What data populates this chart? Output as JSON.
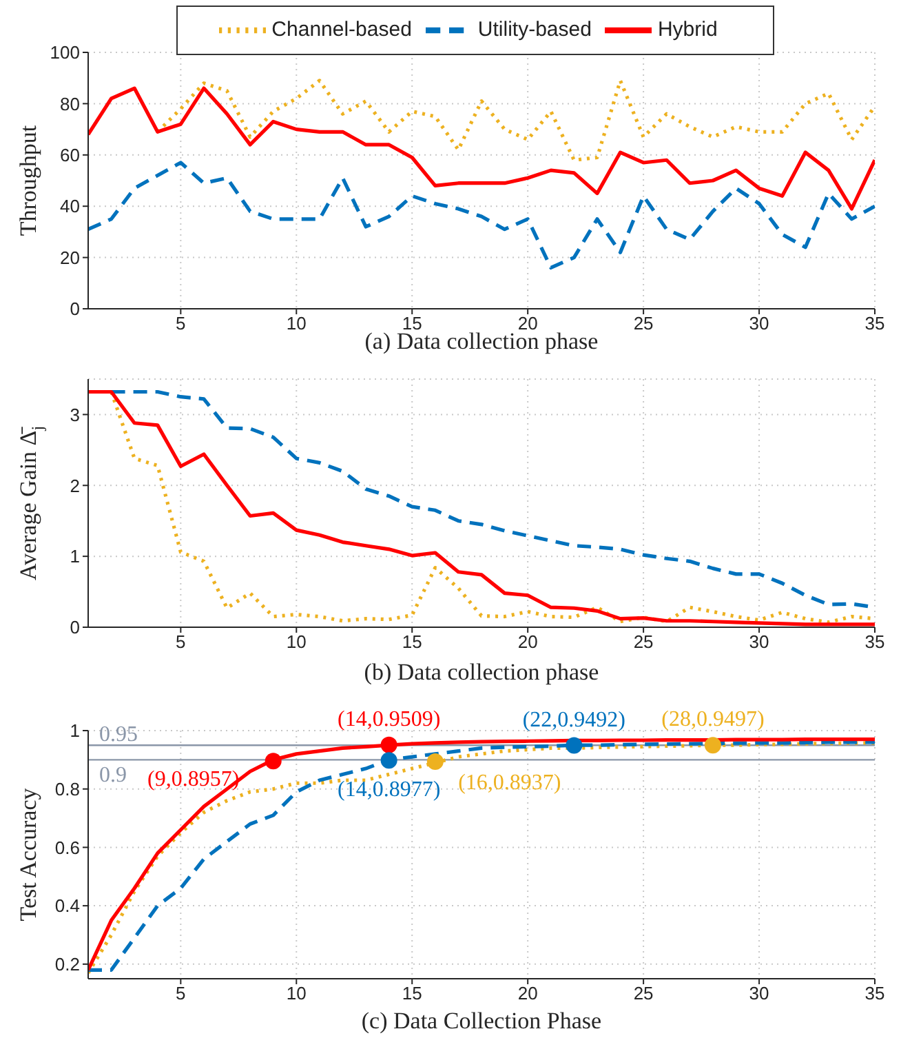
{
  "chart_data": [
    {
      "type": "line",
      "ylabel": "Throughput",
      "xlabel": "(a) Data collection phase",
      "legend": "top",
      "grid": true,
      "marker": "none",
      "x": [
        1,
        2,
        3,
        4,
        5,
        6,
        7,
        8,
        9,
        10,
        11,
        12,
        13,
        14,
        15,
        16,
        17,
        18,
        19,
        20,
        21,
        22,
        23,
        24,
        25,
        26,
        27,
        28,
        29,
        30,
        31,
        32,
        33,
        34,
        35
      ],
      "xlim": [
        1,
        35
      ],
      "xticks": [
        5,
        10,
        15,
        20,
        25,
        30,
        35
      ],
      "ylim": [
        0,
        100
      ],
      "yticks": [
        0,
        20,
        40,
        60,
        80,
        100
      ],
      "series": [
        {
          "name": "Channel-based",
          "color": "#edb120",
          "line_style": "dotted",
          "values": [
            null,
            null,
            null,
            69,
            78,
            88,
            85,
            67,
            77,
            82,
            89,
            76,
            81,
            69,
            77,
            75,
            62,
            81,
            70,
            66,
            77,
            58,
            59,
            89,
            67,
            76,
            71,
            67,
            71,
            69,
            69,
            80,
            84,
            66,
            79
          ]
        },
        {
          "name": "Utility-based",
          "color": "#0072bd",
          "line_style": "dashed",
          "values": [
            31,
            35,
            47,
            52,
            57,
            49,
            51,
            38,
            35,
            35,
            35,
            51,
            32,
            36,
            44,
            41,
            39,
            36,
            31,
            35,
            16,
            20,
            35,
            22,
            44,
            31,
            27,
            38,
            47,
            41,
            29,
            24,
            45,
            35,
            40
          ]
        },
        {
          "name": "Hybrid",
          "color": "#ff0000",
          "line_style": "solid",
          "values": [
            68,
            82,
            86,
            69,
            72,
            86,
            76,
            64,
            73,
            70,
            69,
            69,
            64,
            64,
            59,
            48,
            49,
            49,
            49,
            51,
            54,
            53,
            45,
            61,
            57,
            58,
            49,
            50,
            54,
            47,
            44,
            61,
            54,
            39,
            58
          ]
        }
      ]
    },
    {
      "type": "line",
      "ylabel": "Average Gain Δ̄$_{j}$",
      "xlabel": "(b) Data collection phase",
      "grid": true,
      "marker": "none",
      "x": [
        1,
        2,
        3,
        4,
        5,
        6,
        7,
        8,
        9,
        10,
        11,
        12,
        13,
        14,
        15,
        16,
        17,
        18,
        19,
        20,
        21,
        22,
        23,
        24,
        25,
        26,
        27,
        28,
        29,
        30,
        31,
        32,
        33,
        34,
        35
      ],
      "xlim": [
        1,
        35
      ],
      "xticks": [
        5,
        10,
        15,
        20,
        25,
        30,
        35
      ],
      "ylim": [
        0,
        3.5
      ],
      "yticks": [
        0,
        1,
        2,
        3
      ],
      "series": [
        {
          "color": "#edb120",
          "line_style": "dotted",
          "values": [
            null,
            3.32,
            2.38,
            2.28,
            1.06,
            0.93,
            0.27,
            0.48,
            0.15,
            0.18,
            0.15,
            0.09,
            0.12,
            0.11,
            0.17,
            0.84,
            0.55,
            0.16,
            0.15,
            0.22,
            0.15,
            0.14,
            0.28,
            0.08,
            0.14,
            0.08,
            0.28,
            0.22,
            0.15,
            0.1,
            0.21,
            0.12,
            0.07,
            0.15,
            0.12
          ]
        },
        {
          "color": "#0072bd",
          "line_style": "dashed",
          "values": [
            null,
            3.32,
            3.32,
            3.32,
            3.25,
            3.22,
            2.81,
            2.8,
            2.68,
            2.38,
            2.32,
            2.2,
            1.95,
            1.85,
            1.7,
            1.65,
            1.5,
            1.45,
            1.36,
            1.29,
            1.22,
            1.15,
            1.13,
            1.1,
            1.02,
            0.97,
            0.93,
            0.83,
            0.75,
            0.75,
            0.62,
            0.45,
            0.32,
            0.33,
            0.28
          ]
        },
        {
          "color": "#ff0000",
          "line_style": "solid",
          "values": [
            3.32,
            3.32,
            2.88,
            2.85,
            2.27,
            2.44,
            2.0,
            1.57,
            1.61,
            1.37,
            1.3,
            1.2,
            1.15,
            1.1,
            1.01,
            1.05,
            0.78,
            0.74,
            0.48,
            0.45,
            0.28,
            0.27,
            0.23,
            0.12,
            0.13,
            0.09,
            0.09,
            0.08,
            0.07,
            0.06,
            0.05,
            0.04,
            0.04,
            0.04,
            0.04
          ]
        }
      ]
    },
    {
      "type": "line",
      "ylabel": "Test Accuracy",
      "xlabel": "(c) Data Collection Phase",
      "grid": true,
      "marker": "none",
      "x": [
        1,
        2,
        3,
        4,
        5,
        6,
        7,
        8,
        9,
        10,
        11,
        12,
        13,
        14,
        15,
        16,
        17,
        18,
        19,
        20,
        21,
        22,
        23,
        24,
        25,
        26,
        27,
        28,
        29,
        30,
        31,
        32,
        33,
        34,
        35
      ],
      "xlim": [
        1,
        35
      ],
      "xticks": [
        5,
        10,
        15,
        20,
        25,
        30,
        35
      ],
      "ylim": [
        0.15,
        1
      ],
      "yticks": [
        0.2,
        0.4,
        0.6,
        0.8,
        1
      ],
      "ref_lines": [
        {
          "axis": "y",
          "value": 0.95,
          "label": "0.95",
          "color": "#8a96a8"
        },
        {
          "axis": "y",
          "value": 0.9,
          "label": "0.9",
          "color": "#8a96a8"
        }
      ],
      "series": [
        {
          "color": "#edb120",
          "line_style": "dotted",
          "values": [
            0.17,
            0.3,
            0.45,
            0.57,
            0.65,
            0.72,
            0.76,
            0.79,
            0.8,
            0.82,
            0.82,
            0.83,
            0.83,
            0.85,
            0.87,
            0.89,
            0.91,
            0.92,
            0.93,
            0.935,
            0.94,
            0.94,
            0.942,
            0.944,
            0.945,
            0.947,
            0.948,
            0.95,
            0.95,
            0.952,
            0.953,
            0.955,
            0.956,
            0.957,
            0.958
          ]
        },
        {
          "color": "#0072bd",
          "line_style": "dashed",
          "values": [
            0.18,
            0.18,
            0.29,
            0.4,
            0.46,
            0.56,
            0.62,
            0.68,
            0.71,
            0.79,
            0.83,
            0.85,
            0.87,
            0.9,
            0.91,
            0.92,
            0.93,
            0.94,
            0.943,
            0.945,
            0.947,
            0.95,
            0.95,
            0.952,
            0.953,
            0.954,
            0.955,
            0.956,
            0.957,
            0.958,
            0.958,
            0.959,
            0.96,
            0.96,
            0.96
          ]
        },
        {
          "color": "#ff0000",
          "line_style": "solid",
          "values": [
            0.18,
            0.35,
            0.46,
            0.58,
            0.66,
            0.74,
            0.8,
            0.86,
            0.9,
            0.92,
            0.93,
            0.94,
            0.945,
            0.95,
            0.955,
            0.958,
            0.96,
            0.962,
            0.963,
            0.964,
            0.965,
            0.966,
            0.966,
            0.967,
            0.967,
            0.968,
            0.968,
            0.968,
            0.969,
            0.969,
            0.969,
            0.97,
            0.97,
            0.97,
            0.97
          ]
        },
        {
          "type": "scatter",
          "marker": "circle",
          "color": "#ff0000",
          "x": [
            9,
            14
          ],
          "values": [
            0.8957,
            0.9509
          ],
          "value_labels": [
            "(9,0.8957)",
            "(14,0.9509)"
          ]
        },
        {
          "type": "scatter",
          "marker": "circle",
          "color": "#0072bd",
          "x": [
            14,
            22
          ],
          "values": [
            0.8977,
            0.9492
          ],
          "value_labels": [
            "(14,0.8977)",
            "(22,0.9492)"
          ]
        },
        {
          "type": "scatter",
          "marker": "circle",
          "color": "#edb120",
          "x": [
            16,
            28
          ],
          "values": [
            0.8937,
            0.9497
          ],
          "value_labels": [
            "(16,0.8937)",
            "(28,0.9497)"
          ]
        }
      ]
    }
  ]
}
